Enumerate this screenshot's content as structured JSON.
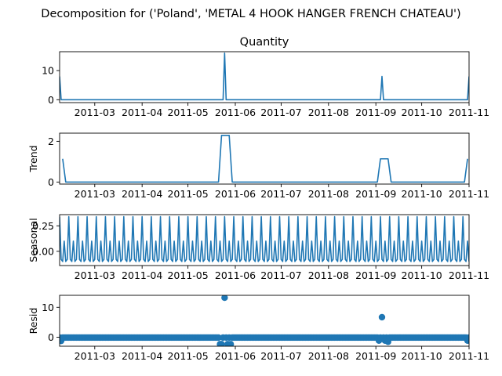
{
  "figure": {
    "suptitle": "Decomposition for ('Poland', 'METAL 4 HOOK HANGER FRENCH CHATEAU')"
  },
  "colors": {
    "line": "#1f77b4",
    "marker": "#1f77b4",
    "zero_line": "#000000",
    "axes": "#000000"
  },
  "chart_data": [
    {
      "type": "line",
      "title": "Quantity",
      "ylabel": "",
      "xlim": [
        "2011-02-06",
        "2011-11-01"
      ],
      "ylim": [
        -1,
        16.5
      ],
      "yticks": [
        0,
        10
      ],
      "xtick_labels": [
        "2011-03",
        "2011-04",
        "2011-05",
        "2011-06",
        "2011-07",
        "2011-08",
        "2011-09",
        "2011-10",
        "2011-11"
      ],
      "xtick_dates": [
        "2011-03-01",
        "2011-04-01",
        "2011-05-01",
        "2011-06-01",
        "2011-07-01",
        "2011-08-01",
        "2011-09-01",
        "2011-10-01",
        "2011-11-01"
      ],
      "baseline": 0,
      "spikes": [
        {
          "date": "2011-02-06",
          "value": 8
        },
        {
          "date": "2011-05-25",
          "value": 16
        },
        {
          "date": "2011-09-05",
          "value": 8
        },
        {
          "date": "2011-11-01",
          "value": 8
        }
      ]
    },
    {
      "type": "line",
      "title": "",
      "ylabel": "Trend",
      "xlim": [
        "2011-02-06",
        "2011-11-01"
      ],
      "ylim": [
        -0.1,
        2.4
      ],
      "yticks": [
        0,
        2
      ],
      "points": [
        {
          "date": "2011-02-08",
          "value": 1.14
        },
        {
          "date": "2011-02-10",
          "value": 0
        },
        {
          "date": "2011-05-21",
          "value": 0
        },
        {
          "date": "2011-05-23",
          "value": 2.29
        },
        {
          "date": "2011-05-28",
          "value": 2.29
        },
        {
          "date": "2011-05-30",
          "value": 0
        },
        {
          "date": "2011-09-02",
          "value": 0
        },
        {
          "date": "2011-09-04",
          "value": 1.14
        },
        {
          "date": "2011-09-09",
          "value": 1.14
        },
        {
          "date": "2011-09-11",
          "value": 0
        },
        {
          "date": "2011-10-29",
          "value": 0
        },
        {
          "date": "2011-10-31",
          "value": 1.14
        }
      ]
    },
    {
      "type": "line",
      "title": "",
      "ylabel": "Seasonal",
      "xlim": [
        "2011-02-06",
        "2011-11-01"
      ],
      "ylim": [
        -0.14,
        0.36
      ],
      "yticks": [
        0.0,
        0.25
      ],
      "ytick_labels": [
        "0.00",
        "0.25"
      ],
      "period_days": 6,
      "cycle_values": [
        0.34,
        -0.08,
        -0.1,
        0.1,
        -0.1,
        -0.08
      ]
    },
    {
      "type": "scatter",
      "title": "",
      "ylabel": "Resid",
      "xlim": [
        "2011-02-06",
        "2011-11-01"
      ],
      "ylim": [
        -3,
        14
      ],
      "yticks": [
        0,
        10
      ],
      "zero_line": true,
      "default_value": -0.1,
      "outliers": [
        {
          "date": "2011-02-07",
          "value": -1.2
        },
        {
          "date": "2011-05-22",
          "value": -2.3
        },
        {
          "date": "2011-05-23",
          "value": -2.3
        },
        {
          "date": "2011-05-25",
          "value": 13.2
        },
        {
          "date": "2011-05-27",
          "value": -2.3
        },
        {
          "date": "2011-05-29",
          "value": -2.3
        },
        {
          "date": "2011-09-03",
          "value": -1.1
        },
        {
          "date": "2011-09-05",
          "value": 6.7
        },
        {
          "date": "2011-09-07",
          "value": -1.1
        },
        {
          "date": "2011-09-09",
          "value": -1.5
        },
        {
          "date": "2011-10-31",
          "value": -1.1
        }
      ]
    }
  ]
}
